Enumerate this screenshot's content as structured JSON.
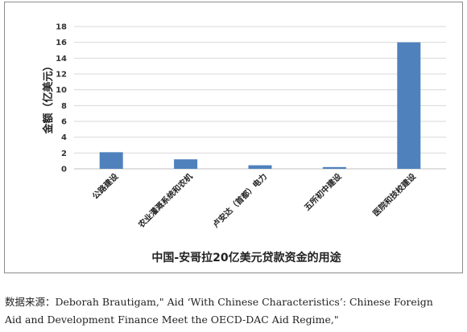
{
  "chart_data": {
    "type": "bar",
    "categories": [
      "公路建设",
      "农业灌溉系统和农机",
      "卢安达（首都）电力",
      "五所初中建设",
      "医院和技校建设"
    ],
    "values": [
      2.1,
      1.2,
      0.45,
      0.22,
      16.0
    ],
    "ylabel": "金额（亿美元）",
    "xlabel": "中国-安哥拉20亿美元贷款资金的用途",
    "ylim": [
      0,
      18
    ],
    "yticks": [
      0,
      2,
      4,
      6,
      8,
      10,
      12,
      14,
      16,
      18
    ],
    "grid": true,
    "bar_color": "#4f81bd",
    "grid_color": "#d9d9d9"
  },
  "source": {
    "line1": "数据来源：Deborah Brautigam,\" Aid ‘With Chinese Characteristics’: Chinese Foreign",
    "line2": "Aid and Development Finance Meet the OECD-DAC Aid Regime,\""
  }
}
